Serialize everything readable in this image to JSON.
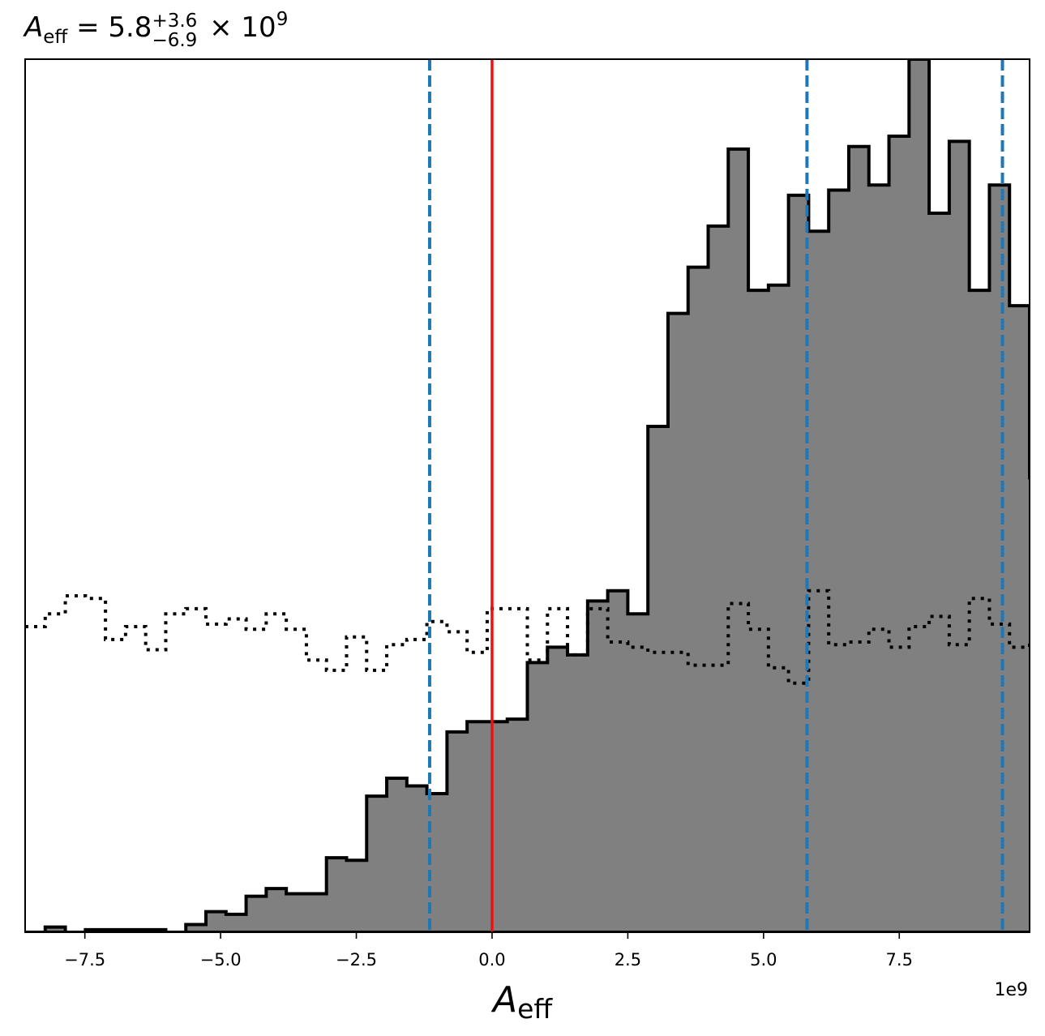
{
  "chart_data": {
    "type": "histogram",
    "title": {
      "symbol": "A",
      "symbol_subscript": "eff",
      "equals": " = 5.8",
      "upper": "+3.6",
      "lower": "−6.9",
      "times": " × 10",
      "exponent": "9"
    },
    "xlabel": {
      "symbol": "A",
      "subscript": "eff"
    },
    "x_offset_label": "1e9",
    "xlim": [
      -8.6,
      9.9
    ],
    "ylim": [
      0,
      340
    ],
    "x_unit_scale": 1000000000.0,
    "xticks": [
      -7.5,
      -5.0,
      -2.5,
      0.0,
      2.5,
      5.0,
      7.5
    ],
    "xtick_labels": [
      "−7.5",
      "−5.0",
      "−2.5",
      "0.0",
      "2.5",
      "5.0",
      "7.5"
    ],
    "posterior": {
      "bin_start": -8.6,
      "bin_width": 0.37,
      "counts": [
        0,
        2,
        0,
        1,
        1,
        1,
        1,
        0,
        3,
        8,
        7,
        14,
        17,
        15,
        15,
        29,
        28,
        53,
        60,
        57,
        54,
        78,
        82,
        82,
        83,
        105,
        111,
        108,
        129,
        133,
        124,
        197,
        241,
        259,
        275,
        305,
        250,
        252,
        287,
        273,
        289,
        306,
        291,
        310,
        340,
        280,
        308,
        250,
        291,
        244,
        177
      ],
      "fill": "#808080",
      "edge": "#000000"
    },
    "prior": {
      "bin_start": -8.6,
      "bin_width": 0.37,
      "counts": [
        119,
        124,
        131,
        130,
        114,
        119,
        110,
        124,
        126,
        120,
        122,
        118,
        124,
        118,
        106,
        102,
        115,
        102,
        112,
        114,
        121,
        117,
        109,
        126,
        126,
        106,
        126,
        108,
        126,
        113,
        111,
        109,
        109,
        104,
        104,
        128,
        118,
        103,
        97,
        133,
        112,
        113,
        118,
        111,
        119,
        123,
        112,
        130,
        120,
        111,
        114
      ],
      "style": "dotted",
      "color": "#000000"
    },
    "vlines": [
      {
        "x": 0.0,
        "color": "#ee1111",
        "style": "solid"
      },
      {
        "x": -1.15,
        "color": "#1f77b4",
        "style": "dashed"
      },
      {
        "x": 5.8,
        "color": "#1f77b4",
        "style": "dashed"
      },
      {
        "x": 9.4,
        "color": "#1f77b4",
        "style": "dashed"
      }
    ]
  }
}
